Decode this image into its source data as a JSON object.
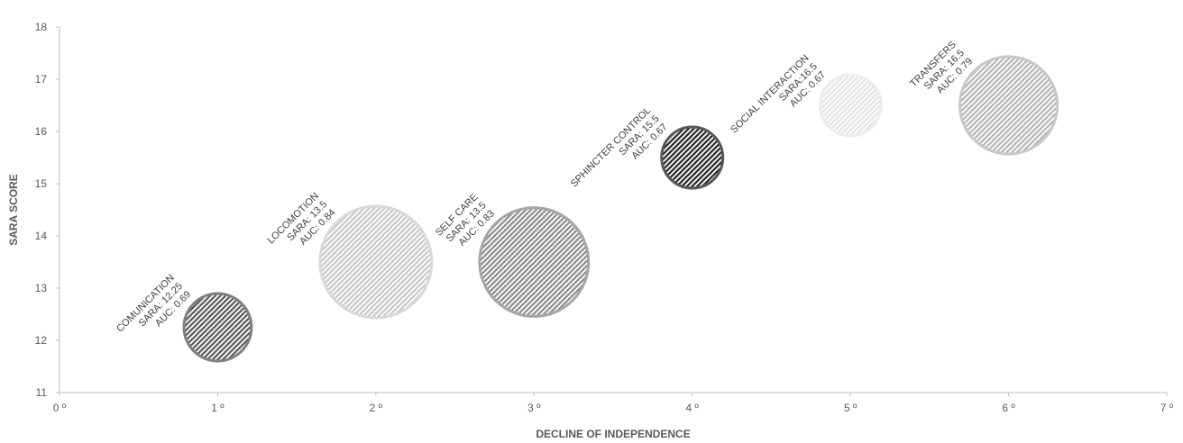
{
  "chart_data": {
    "type": "bubble",
    "xlabel": "DECLINE OF INDEPENDENCE",
    "ylabel": "SARA SCORE",
    "xlim": [
      0,
      7
    ],
    "ylim": [
      11,
      18
    ],
    "x_ticks": [
      "0 º",
      "1 º",
      "2 º",
      "3 º",
      "4 º",
      "5 º",
      "6 º",
      "7 º"
    ],
    "y_ticks": [
      "11",
      "12",
      "13",
      "14",
      "15",
      "16",
      "17",
      "18"
    ],
    "grid": false,
    "points": [
      {
        "x": 1,
        "y": 12.25,
        "size": 0.69,
        "lines": [
          "COMUNICATION",
          "SARA: 12.25",
          "AUC: 0.69"
        ],
        "fill": "#595959",
        "stroke": "#7f7f7f"
      },
      {
        "x": 2,
        "y": 13.5,
        "size": 0.84,
        "lines": [
          "LOCOMOTION",
          "SARA: 13.5",
          "AUC: 0.84"
        ],
        "fill": "#c8c8c8",
        "stroke": "#d9d9d9"
      },
      {
        "x": 3,
        "y": 13.5,
        "size": 0.83,
        "lines": [
          "SELF CARE",
          "SARA: 13.5",
          "AUC: 0.83"
        ],
        "fill": "#8c8c8c",
        "stroke": "#a6a6a6"
      },
      {
        "x": 4,
        "y": 15.5,
        "size": 0.67,
        "lines": [
          "SPHINCTER CONTROL",
          "SARA: 15.5",
          "AUC: 0.67"
        ],
        "fill": "#262626",
        "stroke": "#595959"
      },
      {
        "x": 5,
        "y": 16.5,
        "size": 0.67,
        "lines": [
          "SOCIAL INTERACTION",
          "SARA:16.5",
          "AUC: 0.67"
        ],
        "fill": "#e3e3e3",
        "stroke": "#ededed"
      },
      {
        "x": 6,
        "y": 16.5,
        "size": 0.79,
        "lines": [
          "TRANSFERS",
          "SARA: 16.5",
          "AUC: 0.79"
        ],
        "fill": "#b5b5b5",
        "stroke": "#c8c8c8"
      }
    ]
  }
}
